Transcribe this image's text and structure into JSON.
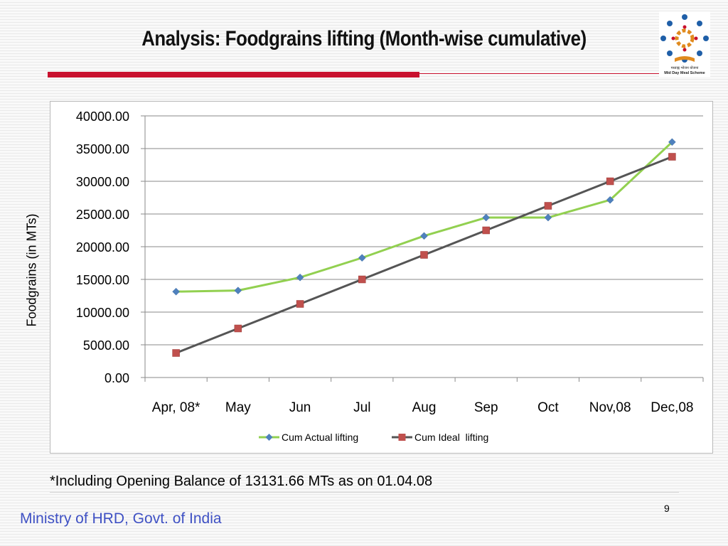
{
  "slide": {
    "title": "Analysis: Foodgrains lifting (Month-wise cumulative)",
    "logo_caption_hindi": "मध्याह्न भोजन योजना",
    "logo_caption": "Mid Day Meal Scheme",
    "footnote": "*Including Opening Balance of 13131.66 MTs as on 01.04.08",
    "footer_org": "Ministry of HRD, Govt. of India",
    "page_number": "9"
  },
  "chart_data": {
    "type": "line",
    "ylabel": "Foodgrains (in MTs)",
    "xlabel": "",
    "categories": [
      "Apr, 08*",
      "May",
      "Jun",
      "Jul",
      "Aug",
      "Sep",
      "Oct",
      "Nov,08",
      "Dec,08"
    ],
    "ylim": [
      0,
      40000
    ],
    "yticks": [
      0,
      5000,
      10000,
      15000,
      20000,
      25000,
      30000,
      35000,
      40000
    ],
    "ytick_labels": [
      "0.00",
      "5000.00",
      "10000.00",
      "15000.00",
      "20000.00",
      "25000.00",
      "30000.00",
      "35000.00",
      "40000.00"
    ],
    "grid": true,
    "legend_position": "bottom",
    "series": [
      {
        "name": "Cum Actual lifting",
        "color": "#92d050",
        "marker_color": "#4f81bd",
        "marker": "diamond",
        "values": [
          13131.66,
          13300,
          15300,
          18300,
          21650,
          24450,
          24450,
          27150,
          36000
        ]
      },
      {
        "name": "Cum Ideal  lifting",
        "color": "#555555",
        "marker_color": "#c0504d",
        "marker": "square",
        "values": [
          3750,
          7500,
          11250,
          15000,
          18750,
          22500,
          26250,
          30000,
          33750
        ]
      }
    ]
  }
}
